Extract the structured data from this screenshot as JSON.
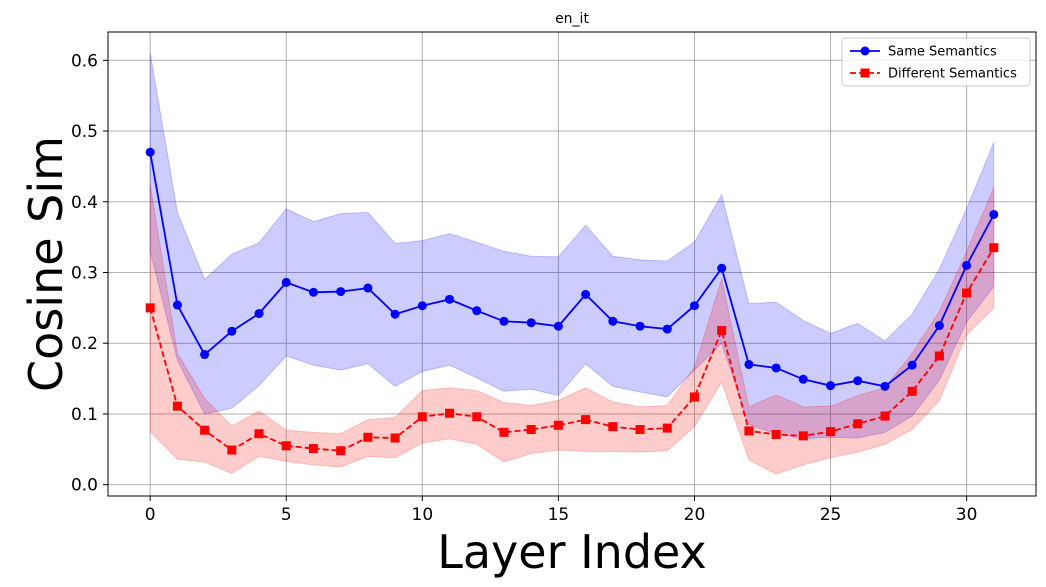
{
  "chart_data": {
    "type": "line",
    "title": "en_it",
    "xlabel": "Layer Index",
    "ylabel": "Cosine Sim",
    "xlim": [
      -1.55,
      32.55
    ],
    "ylim": [
      -0.016,
      0.64
    ],
    "xticks": [
      0,
      5,
      10,
      15,
      20,
      25,
      30
    ],
    "yticks": [
      0.0,
      0.1,
      0.2,
      0.3,
      0.4,
      0.5,
      0.6
    ],
    "ytick_labels": [
      "0.0",
      "0.1",
      "0.2",
      "0.3",
      "0.4",
      "0.5",
      "0.6"
    ],
    "grid": true,
    "legend_position": "top-right",
    "x": [
      0,
      1,
      2,
      3,
      4,
      5,
      6,
      7,
      8,
      9,
      10,
      11,
      12,
      13,
      14,
      15,
      16,
      17,
      18,
      19,
      20,
      21,
      22,
      23,
      24,
      25,
      26,
      27,
      28,
      29,
      30,
      31
    ],
    "series": [
      {
        "name": "Same Semantics",
        "color": "#0000ff",
        "band_color": "#0000ff",
        "marker": "circle",
        "linestyle": "solid",
        "values": [
          0.47,
          0.254,
          0.184,
          0.217,
          0.242,
          0.286,
          0.272,
          0.273,
          0.278,
          0.241,
          0.253,
          0.262,
          0.246,
          0.231,
          0.229,
          0.224,
          0.269,
          0.231,
          0.224,
          0.22,
          0.253,
          0.306,
          0.17,
          0.165,
          0.149,
          0.14,
          0.147,
          0.139,
          0.169,
          0.225,
          0.31,
          0.382
        ],
        "upper": [
          0.61,
          0.385,
          0.29,
          0.326,
          0.342,
          0.39,
          0.372,
          0.383,
          0.385,
          0.341,
          0.345,
          0.355,
          0.343,
          0.33,
          0.323,
          0.322,
          0.367,
          0.323,
          0.318,
          0.316,
          0.343,
          0.41,
          0.256,
          0.258,
          0.232,
          0.214,
          0.228,
          0.203,
          0.241,
          0.305,
          0.39,
          0.484
        ],
        "lower": [
          0.33,
          0.176,
          0.1,
          0.108,
          0.14,
          0.182,
          0.169,
          0.162,
          0.171,
          0.139,
          0.16,
          0.169,
          0.151,
          0.132,
          0.135,
          0.126,
          0.171,
          0.139,
          0.131,
          0.124,
          0.162,
          0.2,
          0.085,
          0.072,
          0.065,
          0.067,
          0.066,
          0.074,
          0.097,
          0.148,
          0.23,
          0.28
        ]
      },
      {
        "name": "Different Semantics",
        "color": "#ff0000",
        "band_color": "#ff0000",
        "marker": "square",
        "linestyle": "dashed",
        "values": [
          0.25,
          0.111,
          0.077,
          0.049,
          0.072,
          0.055,
          0.051,
          0.048,
          0.067,
          0.066,
          0.096,
          0.101,
          0.096,
          0.074,
          0.078,
          0.084,
          0.092,
          0.082,
          0.078,
          0.08,
          0.124,
          0.218,
          0.076,
          0.071,
          0.069,
          0.075,
          0.086,
          0.097,
          0.132,
          0.182,
          0.271,
          0.335
        ],
        "upper": [
          0.425,
          0.186,
          0.122,
          0.083,
          0.104,
          0.077,
          0.074,
          0.072,
          0.092,
          0.095,
          0.133,
          0.137,
          0.133,
          0.116,
          0.112,
          0.119,
          0.137,
          0.117,
          0.11,
          0.112,
          0.166,
          0.291,
          0.11,
          0.127,
          0.11,
          0.111,
          0.126,
          0.137,
          0.186,
          0.245,
          0.33,
          0.42
        ],
        "lower": [
          0.075,
          0.036,
          0.032,
          0.016,
          0.04,
          0.033,
          0.028,
          0.025,
          0.04,
          0.038,
          0.059,
          0.065,
          0.057,
          0.032,
          0.044,
          0.049,
          0.047,
          0.047,
          0.046,
          0.048,
          0.082,
          0.145,
          0.035,
          0.015,
          0.028,
          0.038,
          0.046,
          0.057,
          0.078,
          0.119,
          0.212,
          0.25
        ]
      }
    ]
  }
}
